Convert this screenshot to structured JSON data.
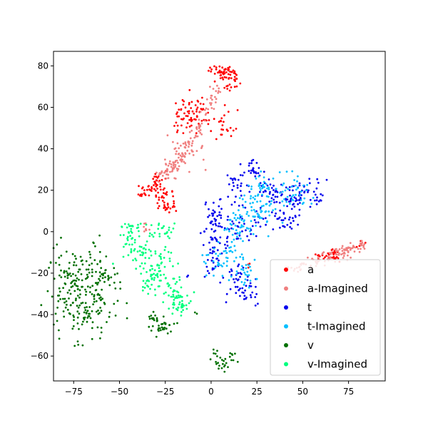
{
  "chart_data": {
    "type": "scatter",
    "title": "",
    "xlabel": "",
    "ylabel": "",
    "xlim": [
      -86,
      95
    ],
    "ylim": [
      -72,
      87
    ],
    "xticks": [
      -75,
      -50,
      -25,
      0,
      25,
      50,
      75
    ],
    "yticks": [
      -60,
      -40,
      -20,
      0,
      20,
      40,
      60,
      80
    ],
    "grid": false,
    "legend_position": "lower-right",
    "series": [
      {
        "name": "a",
        "color": "#ff0000",
        "clusters": [
          {
            "cx": 6,
            "cy": 77,
            "rx": 4,
            "ry": 2,
            "n": 45
          },
          {
            "cx": 11,
            "cy": 73,
            "rx": 3,
            "ry": 3,
            "n": 25
          },
          {
            "cx": -12,
            "cy": 58,
            "rx": 4,
            "ry": 4,
            "n": 45
          },
          {
            "cx": -17,
            "cy": 53,
            "rx": 2,
            "ry": 3,
            "n": 15
          },
          {
            "cx": -5,
            "cy": 54,
            "rx": 2,
            "ry": 3,
            "n": 12
          },
          {
            "cx": 7,
            "cy": 53,
            "rx": 4,
            "ry": 4,
            "n": 25
          },
          {
            "cx": -30,
            "cy": 25,
            "rx": 3,
            "ry": 3,
            "n": 30
          },
          {
            "cx": -38,
            "cy": 20,
            "rx": 2,
            "ry": 2,
            "n": 15
          },
          {
            "cx": -27,
            "cy": 17,
            "rx": 3,
            "ry": 3,
            "n": 30
          },
          {
            "cx": -23,
            "cy": 13,
            "rx": 2,
            "ry": 2,
            "n": 15
          },
          {
            "cx": 20,
            "cy": -16,
            "rx": 1,
            "ry": 1,
            "n": 3
          },
          {
            "cx": 65,
            "cy": -12,
            "rx": 3,
            "ry": 1.5,
            "n": 18
          }
        ],
        "segments": [
          {
            "x0": 57,
            "y0": -12,
            "x1": 85,
            "y1": -5,
            "n": 25,
            "jitter": 1
          }
        ]
      },
      {
        "name": "a-Imagined",
        "color": "#f08080",
        "clusters": [
          {
            "cx": -13,
            "cy": 38,
            "rx": 5,
            "ry": 5,
            "n": 30
          },
          {
            "cx": -22,
            "cy": 30,
            "rx": 4,
            "ry": 2.5,
            "n": 30
          },
          {
            "cx": -35,
            "cy": 2,
            "rx": 2,
            "ry": 1.5,
            "n": 8
          },
          {
            "cx": 45,
            "cy": -17,
            "rx": 2,
            "ry": 1.5,
            "n": 10
          },
          {
            "cx": 72,
            "cy": -10,
            "rx": 3,
            "ry": 2,
            "n": 15
          }
        ],
        "segments": [
          {
            "x0": -25,
            "y0": 27,
            "x1": -8,
            "y1": 50,
            "n": 60,
            "jitter": 2
          },
          {
            "x0": -8,
            "y0": 48,
            "x1": 5,
            "y1": 73,
            "n": 40,
            "jitter": 1.5
          },
          {
            "x0": 50,
            "y0": -17,
            "x1": 85,
            "y1": -5,
            "n": 80,
            "jitter": 1.5
          }
        ]
      },
      {
        "name": "t",
        "color": "#0000ee",
        "clusters": [
          {
            "cx": 22,
            "cy": 30,
            "rx": 3,
            "ry": 2,
            "n": 25
          },
          {
            "cx": 15,
            "cy": 22,
            "rx": 4,
            "ry": 3,
            "n": 25
          },
          {
            "cx": 30,
            "cy": 20,
            "rx": 3,
            "ry": 3,
            "n": 20
          },
          {
            "cx": 40,
            "cy": 15,
            "rx": 4,
            "ry": 4,
            "n": 30
          },
          {
            "cx": 50,
            "cy": 18,
            "rx": 6,
            "ry": 4,
            "n": 55
          },
          {
            "cx": 40,
            "cy": 5,
            "rx": 5,
            "ry": 4,
            "n": 25
          },
          {
            "cx": 20,
            "cy": 5,
            "rx": 7,
            "ry": 6,
            "n": 40
          },
          {
            "cx": 2,
            "cy": 9,
            "rx": 3,
            "ry": 4,
            "n": 30
          },
          {
            "cx": 2,
            "cy": -3,
            "rx": 4,
            "ry": 5,
            "n": 35
          },
          {
            "cx": 2,
            "cy": -15,
            "rx": 3,
            "ry": 4,
            "n": 25
          },
          {
            "cx": 15,
            "cy": -20,
            "rx": 3,
            "ry": 3,
            "n": 15
          },
          {
            "cx": 18,
            "cy": -30,
            "rx": 4,
            "ry": 4,
            "n": 35
          },
          {
            "cx": -13,
            "cy": -21,
            "rx": 0.5,
            "ry": 0.5,
            "n": 2
          }
        ],
        "segments": []
      },
      {
        "name": "t-Imagined",
        "color": "#00bfff",
        "clusters": [
          {
            "cx": 25,
            "cy": 12,
            "rx": 6,
            "ry": 6,
            "n": 70
          },
          {
            "cx": 30,
            "cy": 22,
            "rx": 3,
            "ry": 3,
            "n": 20
          },
          {
            "cx": 45,
            "cy": 20,
            "rx": 4,
            "ry": 4,
            "n": 35
          },
          {
            "cx": 15,
            "cy": 5,
            "rx": 5,
            "ry": 5,
            "n": 35
          },
          {
            "cx": 10,
            "cy": -14,
            "rx": 7,
            "ry": 4,
            "n": 55
          },
          {
            "cx": 20,
            "cy": -22,
            "rx": 2,
            "ry": 3,
            "n": 15
          }
        ],
        "segments": []
      },
      {
        "name": "v",
        "color": "#007000",
        "clusters": [
          {
            "cx": -70,
            "cy": -30,
            "rx": 9,
            "ry": 10,
            "n": 240
          },
          {
            "cx": -58,
            "cy": -20,
            "rx": 3,
            "ry": 2,
            "n": 15
          },
          {
            "cx": -28,
            "cy": -46,
            "rx": 4,
            "ry": 2,
            "n": 35
          },
          {
            "cx": -31,
            "cy": -42,
            "rx": 2,
            "ry": 1.5,
            "n": 10
          },
          {
            "cx": 7,
            "cy": -62,
            "rx": 4,
            "ry": 2.5,
            "n": 30
          },
          {
            "cx": -8,
            "cy": -39,
            "rx": 0.5,
            "ry": 0.5,
            "n": 2
          }
        ],
        "segments": []
      },
      {
        "name": "v-Imagined",
        "color": "#00ff7f",
        "clusters": [
          {
            "cx": -42,
            "cy": 3,
            "rx": 4,
            "ry": 1,
            "n": 15
          },
          {
            "cx": -25,
            "cy": 0,
            "rx": 3,
            "ry": 2,
            "n": 18
          },
          {
            "cx": -40,
            "cy": -7,
            "rx": 6,
            "ry": 5,
            "n": 60
          },
          {
            "cx": -28,
            "cy": -17,
            "rx": 5,
            "ry": 5,
            "n": 50
          },
          {
            "cx": -35,
            "cy": -25,
            "rx": 3,
            "ry": 3,
            "n": 25
          },
          {
            "cx": -20,
            "cy": -30,
            "rx": 4,
            "ry": 5,
            "n": 40
          },
          {
            "cx": -15,
            "cy": -36,
            "rx": 3,
            "ry": 3,
            "n": 25
          }
        ],
        "segments": []
      }
    ]
  }
}
